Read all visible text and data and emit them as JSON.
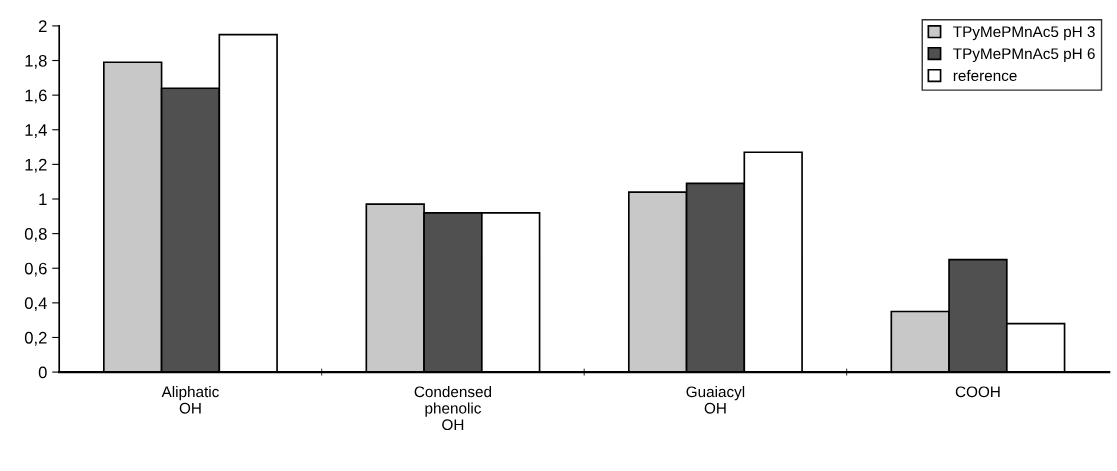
{
  "chart_data": {
    "type": "bar",
    "categories": [
      "Aliphatic\nOH",
      "Condensed\nphenolic\nOH",
      "Guaiacyl\nOH",
      "COOH"
    ],
    "series": [
      {
        "name": "TPyMePMnAc5 pH 3",
        "color": "#c8c8c8",
        "values": [
          1.79,
          0.97,
          1.04,
          0.35
        ]
      },
      {
        "name": "TPyMePMnAc5 pH 6",
        "color": "#505050",
        "values": [
          1.64,
          0.92,
          1.09,
          0.65
        ]
      },
      {
        "name": "reference",
        "color": "#ffffff",
        "values": [
          1.95,
          0.92,
          1.27,
          0.28
        ]
      }
    ],
    "ylim": [
      0,
      2
    ],
    "yticks": [
      0,
      {
        "value": 0.2,
        "label": "0,2"
      },
      {
        "value": 0.4,
        "label": "0,4"
      },
      {
        "value": 0.6,
        "label": "0,6"
      },
      {
        "value": 0.8,
        "label": "0,8"
      },
      1,
      {
        "value": 1.2,
        "label": "1,2"
      },
      {
        "value": 1.4,
        "label": "1,4"
      },
      {
        "value": 1.6,
        "label": "1,6"
      },
      {
        "value": 1.8,
        "label": "1,8"
      },
      2
    ],
    "grid": false,
    "legend": "top right"
  }
}
